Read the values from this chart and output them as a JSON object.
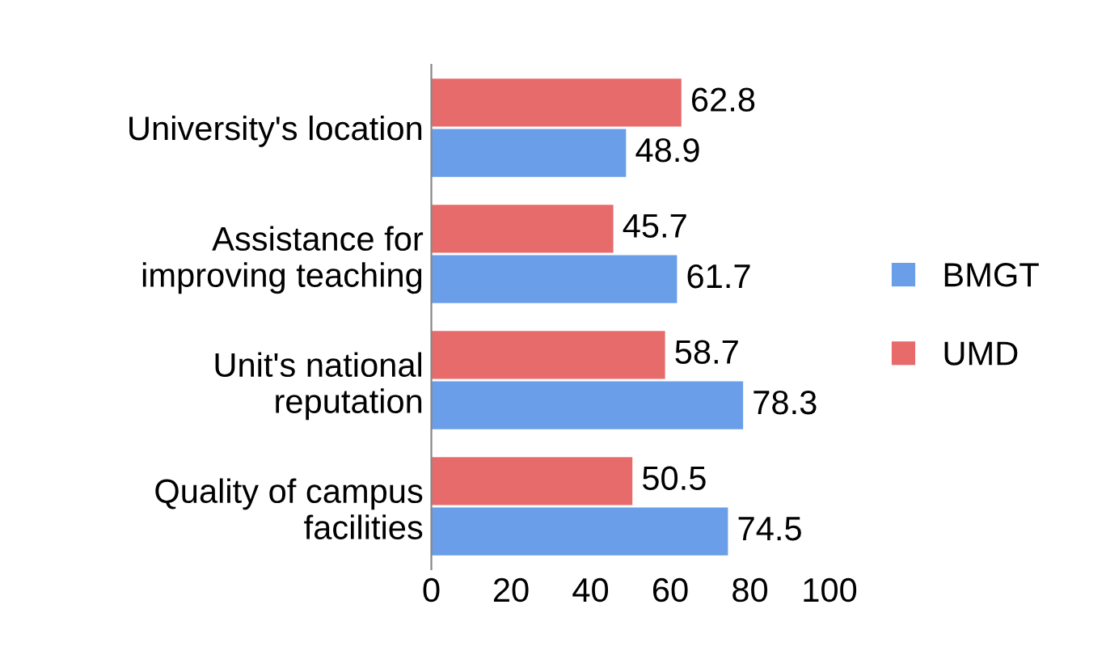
{
  "chart_data": {
    "type": "bar",
    "orientation": "horizontal",
    "categories": [
      "University's location",
      "Assistance for\nimproving teaching",
      "Unit's national\nreputation",
      "Quality of campus\nfacilities"
    ],
    "series": [
      {
        "name": "UMD",
        "color": "#e86b6b",
        "values": [
          62.8,
          45.7,
          58.7,
          50.5
        ]
      },
      {
        "name": "BMGT",
        "color": "#6a9ee8",
        "values": [
          48.9,
          61.7,
          78.3,
          74.5
        ]
      }
    ],
    "xlim": [
      0,
      100
    ],
    "xticks": [
      0,
      20,
      40,
      60,
      80,
      100
    ],
    "data_labels": true,
    "grid": false,
    "legend": "right"
  }
}
